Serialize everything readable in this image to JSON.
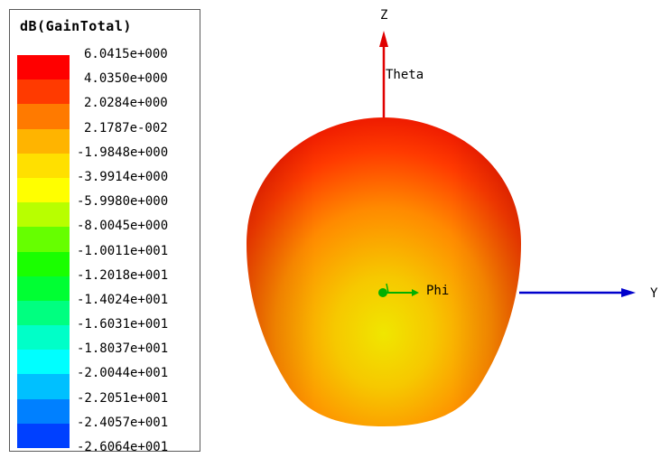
{
  "legend": {
    "title": "dB(GainTotal)",
    "entries": [
      {
        "label": "6.0415e+000",
        "color": "#ff0000"
      },
      {
        "label": "4.0350e+000",
        "color": "#ff3a00"
      },
      {
        "label": "2.0284e+000",
        "color": "#ff7a00"
      },
      {
        "label": "2.1787e-002",
        "color": "#ffb400"
      },
      {
        "label": "-1.9848e+000",
        "color": "#ffe000"
      },
      {
        "label": "-3.9914e+000",
        "color": "#ffff00"
      },
      {
        "label": "-5.9980e+000",
        "color": "#b8ff00"
      },
      {
        "label": "-8.0045e+000",
        "color": "#66ff00"
      },
      {
        "label": "-1.0011e+001",
        "color": "#1aff00"
      },
      {
        "label": "-1.2018e+001",
        "color": "#00ff33"
      },
      {
        "label": "-1.4024e+001",
        "color": "#00ff80"
      },
      {
        "label": "-1.6031e+001",
        "color": "#00ffc8"
      },
      {
        "label": "-1.8037e+001",
        "color": "#00ffff"
      },
      {
        "label": "-2.0044e+001",
        "color": "#00c0ff"
      },
      {
        "label": "-2.2051e+001",
        "color": "#0080ff"
      },
      {
        "label": "-2.4057e+001",
        "color": "#0040ff"
      }
    ],
    "last_label": "-2.6064e+001"
  },
  "axes": {
    "z_label": "Z",
    "y_label": "Y",
    "theta_label": "Theta",
    "phi_label": "Phi",
    "z_color": "#e00000",
    "y_color": "#0000cc",
    "x_color": "#00b000"
  }
}
